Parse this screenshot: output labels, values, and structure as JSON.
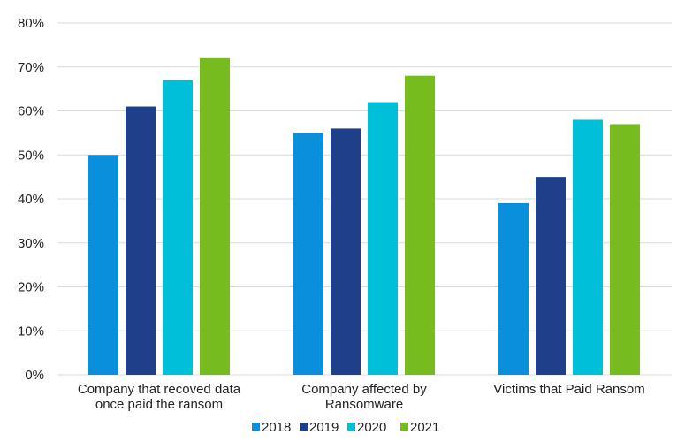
{
  "chart_data": {
    "type": "bar",
    "categories": [
      [
        "Company that recoved data",
        "once paid the ransom"
      ],
      [
        "Company affected by",
        "Ransomware"
      ],
      [
        "Victims that Paid Ransom"
      ]
    ],
    "series": [
      {
        "name": "2018",
        "color": "#0a8fdd",
        "values": [
          50,
          55,
          39
        ]
      },
      {
        "name": "2019",
        "color": "#1e3f8a",
        "values": [
          61,
          56,
          45
        ]
      },
      {
        "name": "2020",
        "color": "#00bfd8",
        "values": [
          67,
          62,
          58
        ]
      },
      {
        "name": "2021",
        "color": "#77bc1f",
        "values": [
          72,
          68,
          57
        ]
      }
    ],
    "ylim": [
      0,
      80
    ],
    "yticks": [
      "0%",
      "10%",
      "20%",
      "30%",
      "40%",
      "50%",
      "60%",
      "70%",
      "80%"
    ],
    "grid": true,
    "legend_position": "bottom-center"
  }
}
